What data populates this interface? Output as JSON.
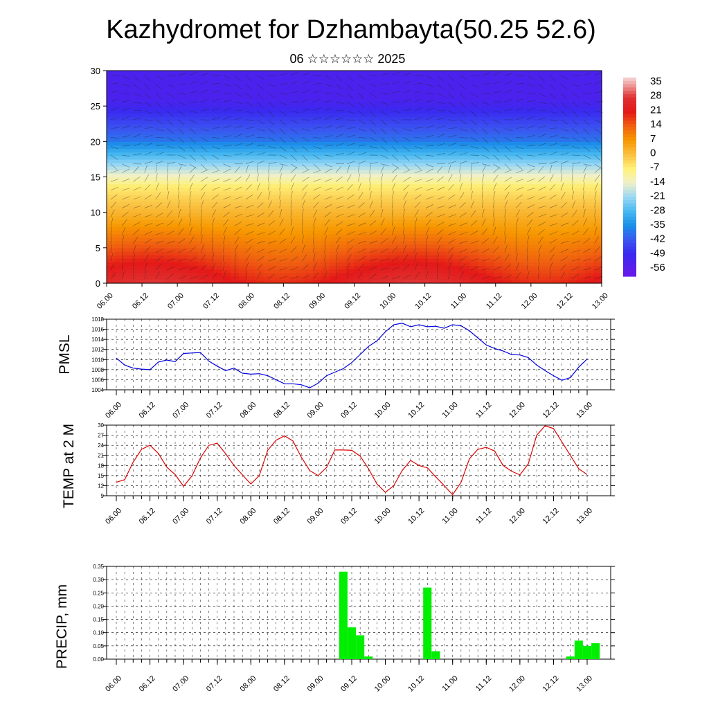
{
  "title": "Kazhydromet for Dzhambayta(50.25 52.6)",
  "subtitle": "06 ☆☆☆☆☆☆ 2025",
  "time_labels": [
    "06.00",
    "06.12",
    "07.00",
    "07.12",
    "08.00",
    "08.12",
    "09.00",
    "09.12",
    "10.00",
    "10.12",
    "11.00",
    "11.12",
    "12.00",
    "12.12",
    "13.00"
  ],
  "chart_data": [
    {
      "type": "heatmap",
      "title": "",
      "ylim": [
        0,
        30
      ],
      "yticks": [
        0,
        5,
        10,
        15,
        20,
        25,
        30
      ],
      "colorbar_labels": [
        "35",
        "28",
        "21",
        "14",
        "7",
        "0",
        "-7",
        "-14",
        "-21",
        "-28",
        "-35",
        "-42",
        "-49",
        "-56"
      ],
      "colorbar_range": [
        -60,
        38
      ],
      "colors": {
        "cold": "#5a10d8",
        "cool": "#1f8fe8",
        "mild": "#fff8a8",
        "warm": "#f7a000",
        "hot": "#e01010",
        "pale": "#f4b8b8"
      }
    },
    {
      "type": "line",
      "ylabel": "PMSL",
      "ylim": [
        1004,
        1018
      ],
      "yticks": [
        1004,
        1006,
        1008,
        1010,
        1012,
        1014,
        1016,
        1018
      ],
      "color": "#0000dd",
      "x": [
        0,
        1,
        2,
        3,
        4,
        5,
        6,
        7,
        8,
        9,
        10,
        11,
        12,
        13,
        14,
        15,
        16,
        17,
        18,
        19,
        20,
        21,
        22,
        23,
        24,
        25,
        26,
        27,
        28,
        29,
        30,
        31,
        32,
        33,
        34,
        35,
        36,
        37,
        38,
        39,
        40,
        41,
        42,
        43,
        44,
        45,
        46,
        47,
        48,
        49,
        50,
        51,
        52,
        53,
        54,
        55,
        56
      ],
      "values": [
        1010.3,
        1008.9,
        1008.3,
        1008.1,
        1008.0,
        1009.5,
        1009.9,
        1009.6,
        1011.2,
        1011.3,
        1011.4,
        1009.7,
        1008.7,
        1007.8,
        1008.3,
        1007.3,
        1007.1,
        1007.2,
        1006.8,
        1006.0,
        1005.2,
        1005.2,
        1005.0,
        1004.4,
        1005.3,
        1006.8,
        1007.5,
        1008.2,
        1009.4,
        1011.0,
        1012.6,
        1013.7,
        1015.5,
        1016.9,
        1017.2,
        1016.5,
        1016.9,
        1016.5,
        1016.6,
        1016.2,
        1016.9,
        1016.7,
        1015.7,
        1014.3,
        1012.9,
        1012.2,
        1011.7,
        1011.0,
        1010.9,
        1010.4,
        1008.9,
        1007.8,
        1006.8,
        1005.9,
        1006.4,
        1008.5,
        1010.1
      ]
    },
    {
      "type": "line",
      "ylabel": "TEMP at 2 M",
      "ylim": [
        9,
        30
      ],
      "yticks": [
        9,
        12,
        15,
        18,
        21,
        24,
        27,
        30
      ],
      "color": "#dd0000",
      "x": [
        0,
        1,
        2,
        3,
        4,
        5,
        6,
        7,
        8,
        9,
        10,
        11,
        12,
        13,
        14,
        15,
        16,
        17,
        18,
        19,
        20,
        21,
        22,
        23,
        24,
        25,
        26,
        27,
        28,
        29,
        30,
        31,
        32,
        33,
        34,
        35,
        36,
        37,
        38,
        39,
        40,
        41,
        42,
        43,
        44,
        45,
        46,
        47,
        48,
        49,
        50,
        51,
        52,
        53,
        54,
        55,
        56
      ],
      "values": [
        13.0,
        13.8,
        19.0,
        22.8,
        24.0,
        21.6,
        17.5,
        15.3,
        11.8,
        14.9,
        20.2,
        24.0,
        24.6,
        21.5,
        18.0,
        15.2,
        12.5,
        15.0,
        22.5,
        25.5,
        26.8,
        25.3,
        20.5,
        16.5,
        15.0,
        17.4,
        22.6,
        22.6,
        22.5,
        20.8,
        17.0,
        12.5,
        10.0,
        12.0,
        16.5,
        19.5,
        18.0,
        17.3,
        14.6,
        12.0,
        9.3,
        13.0,
        20.0,
        22.8,
        23.4,
        22.3,
        18.0,
        16.3,
        15.2,
        18.5,
        27.0,
        29.8,
        29.0,
        25.0,
        21.0,
        17.0,
        15.3
      ]
    },
    {
      "type": "bar",
      "ylabel": "PRECIP, mm",
      "ylim": [
        0,
        0.35
      ],
      "yticks": [
        "0.00",
        "0.05",
        "0.10",
        "0.15",
        "0.20",
        "0.25",
        "0.30",
        "0.35"
      ],
      "color": "#00ee00",
      "x": [
        27,
        28,
        29,
        30,
        37,
        38,
        54,
        55,
        56,
        57
      ],
      "values": [
        0.33,
        0.12,
        0.09,
        0.01,
        0.27,
        0.03,
        0.01,
        0.07,
        0.05,
        0.06
      ]
    }
  ]
}
